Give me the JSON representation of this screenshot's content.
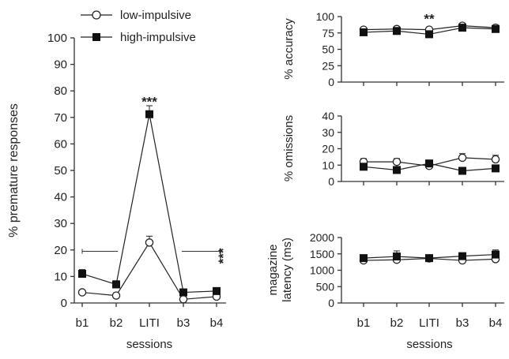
{
  "legend": [
    {
      "label": "low-impulsive",
      "marker": "open-circle"
    },
    {
      "label": "high-impulsive",
      "marker": "filled-square"
    }
  ],
  "chart_data": [
    {
      "type": "line",
      "id": "premature",
      "categories": [
        "b1",
        "b2",
        "LITI",
        "b3",
        "b4"
      ],
      "xlabel": "sessions",
      "ylabel": "% premature responses",
      "ylim": [
        0,
        100
      ],
      "yticks": [
        0,
        10,
        20,
        30,
        40,
        50,
        60,
        70,
        80,
        90,
        100
      ],
      "series": [
        {
          "name": "low-impulsive",
          "values": [
            4,
            2.8,
            22.8,
            1.4,
            2.4
          ],
          "err": [
            0.8,
            0.6,
            2.4,
            0.4,
            0.6
          ]
        },
        {
          "name": "high-impulsive",
          "values": [
            11,
            7,
            71.2,
            4,
            4.5
          ],
          "err": [
            1.6,
            1.4,
            3.2,
            0.8,
            0.8
          ]
        }
      ],
      "annotations": [
        {
          "text": "***",
          "at": "LITI",
          "y": 76
        },
        {
          "text": "***",
          "brackets": [
            "b1-b2",
            "b3-b4"
          ],
          "y": 19.5,
          "side": "right"
        }
      ]
    },
    {
      "type": "line",
      "id": "accuracy",
      "categories": [
        "b1",
        "b2",
        "LITI",
        "b3",
        "b4"
      ],
      "ylabel": "% accuracy",
      "ylim": [
        0,
        100
      ],
      "yticks": [
        0,
        25,
        50,
        75,
        100
      ],
      "series": [
        {
          "name": "low-impulsive",
          "values": [
            80,
            81,
            80,
            86,
            83
          ],
          "err": [
            2,
            2,
            2,
            2,
            2
          ]
        },
        {
          "name": "high-impulsive",
          "values": [
            76,
            78,
            73,
            83,
            81
          ],
          "err": [
            3,
            3,
            3,
            3,
            3
          ]
        }
      ],
      "annotations": [
        {
          "text": "**",
          "at": "LITI",
          "y": 97
        }
      ]
    },
    {
      "type": "line",
      "id": "omissions",
      "categories": [
        "b1",
        "b2",
        "LITI",
        "b3",
        "b4"
      ],
      "ylabel": "% omissions",
      "ylim": [
        0,
        40
      ],
      "yticks": [
        0,
        10,
        20,
        30,
        40
      ],
      "series": [
        {
          "name": "low-impulsive",
          "values": [
            12,
            12,
            9.5,
            14.5,
            13.5
          ],
          "err": [
            2,
            2,
            1.5,
            2.5,
            2.5
          ]
        },
        {
          "name": "high-impulsive",
          "values": [
            9,
            7,
            11,
            6.5,
            8
          ],
          "err": [
            1.5,
            1.5,
            2,
            1.2,
            1.5
          ]
        }
      ]
    },
    {
      "type": "line",
      "id": "latency",
      "categories": [
        "b1",
        "b2",
        "LITI",
        "b3",
        "b4"
      ],
      "xlabel": "sessions",
      "ylabel": "magazine latency (ms)",
      "ylim": [
        0,
        2000
      ],
      "yticks": [
        0,
        500,
        1000,
        1500,
        2000
      ],
      "series": [
        {
          "name": "low-impulsive",
          "values": [
            1300,
            1320,
            1360,
            1300,
            1340
          ],
          "err": [
            60,
            60,
            60,
            60,
            80
          ]
        },
        {
          "name": "high-impulsive",
          "values": [
            1370,
            1420,
            1370,
            1430,
            1480
          ],
          "err": [
            80,
            170,
            80,
            80,
            140
          ]
        }
      ]
    }
  ]
}
